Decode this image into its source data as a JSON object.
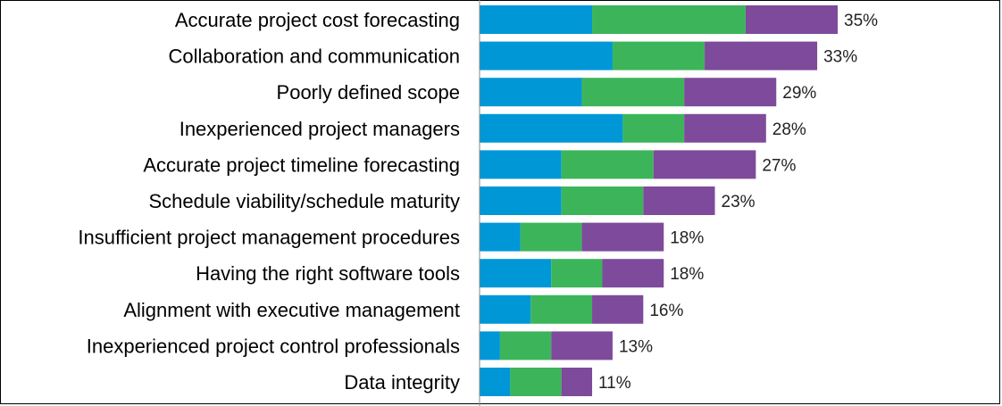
{
  "chart_data": {
    "type": "bar",
    "orientation": "horizontal",
    "stacked": true,
    "categories": [
      "Accurate project cost forecasting",
      "Collaboration and communication",
      "Poorly defined scope",
      "Inexperienced project managers",
      "Accurate project timeline forecasting",
      "Schedule viability/schedule maturity",
      "Insufficient project management procedures",
      "Having the right software tools",
      "Alignment with executive management",
      "Inexperienced project control professionals",
      "Data integrity"
    ],
    "series": [
      {
        "color": "#0097d7",
        "values": [
          11,
          13,
          10,
          14,
          8,
          8,
          4,
          7,
          5,
          2,
          3
        ]
      },
      {
        "color": "#3cb55a",
        "values": [
          15,
          9,
          10,
          6,
          9,
          8,
          6,
          5,
          6,
          5,
          5
        ]
      },
      {
        "color": "#7e4a9b",
        "values": [
          9,
          11,
          9,
          8,
          10,
          7,
          8,
          6,
          5,
          6,
          3
        ]
      }
    ],
    "total_labels": [
      "35%",
      "33%",
      "29%",
      "28%",
      "27%",
      "23%",
      "18%",
      "18%",
      "16%",
      "13%",
      "11%"
    ],
    "xlim": [
      0,
      35
    ],
    "grid": false,
    "legend": "none"
  }
}
